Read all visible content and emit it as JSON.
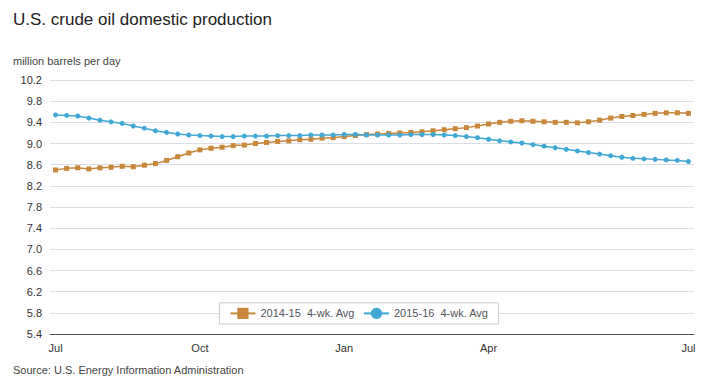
{
  "chart_data": {
    "type": "line",
    "title": "U.S. crude oil domestic production",
    "ylabel": "million barrels per day",
    "annotations": [
      "Source: U.S. Energy Information Administration"
    ],
    "categories": [
      "Jul",
      null,
      null,
      null,
      null,
      null,
      null,
      null,
      null,
      null,
      null,
      null,
      null,
      "Oct",
      null,
      null,
      null,
      null,
      null,
      null,
      null,
      null,
      null,
      null,
      null,
      null,
      "Jan",
      null,
      null,
      null,
      null,
      null,
      null,
      null,
      null,
      null,
      null,
      null,
      null,
      "Apr",
      null,
      null,
      null,
      null,
      null,
      null,
      null,
      null,
      null,
      null,
      null,
      null,
      null,
      null,
      null,
      null,
      null,
      "Jul"
    ],
    "series": [
      {
        "name": "2014-15  4-wk. Avg",
        "color": "#c8873a",
        "marker": "square",
        "values": [
          8.5,
          8.53,
          8.54,
          8.52,
          8.54,
          8.55,
          8.57,
          8.56,
          8.59,
          8.62,
          8.68,
          8.75,
          8.82,
          8.88,
          8.91,
          8.93,
          8.96,
          8.97,
          9.0,
          9.02,
          9.04,
          9.05,
          9.07,
          9.08,
          9.1,
          9.11,
          9.13,
          9.15,
          9.17,
          9.18,
          9.19,
          9.2,
          9.21,
          9.22,
          9.24,
          9.26,
          9.28,
          9.3,
          9.33,
          9.37,
          9.4,
          9.42,
          9.43,
          9.42,
          9.41,
          9.4,
          9.4,
          9.39,
          9.41,
          9.44,
          9.48,
          9.51,
          9.53,
          9.55,
          9.57,
          9.58,
          9.58,
          9.57
        ]
      },
      {
        "name": "2015-16  4-wk. Avg",
        "color": "#3fa8d5",
        "marker": "circle",
        "values": [
          9.54,
          9.53,
          9.52,
          9.48,
          9.44,
          9.41,
          9.38,
          9.33,
          9.29,
          9.24,
          9.21,
          9.18,
          9.16,
          9.15,
          9.14,
          9.13,
          9.13,
          9.14,
          9.14,
          9.14,
          9.15,
          9.15,
          9.15,
          9.16,
          9.16,
          9.16,
          9.17,
          9.17,
          9.16,
          9.16,
          9.16,
          9.16,
          9.17,
          9.17,
          9.17,
          9.16,
          9.15,
          9.13,
          9.11,
          9.08,
          9.05,
          9.03,
          9.01,
          8.98,
          8.95,
          8.92,
          8.89,
          8.86,
          8.83,
          8.8,
          8.77,
          8.74,
          8.72,
          8.71,
          8.7,
          8.69,
          8.68,
          8.66
        ]
      }
    ],
    "ylim": [
      5.4,
      10.2
    ],
    "yticks": [
      {
        "value": 5.4,
        "label": "5.4"
      },
      {
        "value": 5.8,
        "label": "5.8"
      },
      {
        "value": 6.2,
        "label": "6.2"
      },
      {
        "value": 6.6,
        "label": "6.6"
      },
      {
        "value": 7.0,
        "label": "7.0"
      },
      {
        "value": 7.4,
        "label": "7.4"
      },
      {
        "value": 7.8,
        "label": "7.8"
      },
      {
        "value": 8.2,
        "label": "8.2"
      },
      {
        "value": 8.6,
        "label": "8.6"
      },
      {
        "value": 9.0,
        "label": "9.0"
      },
      {
        "value": 9.4,
        "label": "9.4"
      },
      {
        "value": 9.8,
        "label": "9.8"
      },
      {
        "value": 10.2,
        "label": "10.2"
      }
    ],
    "grid": true,
    "legend": "bottom"
  }
}
